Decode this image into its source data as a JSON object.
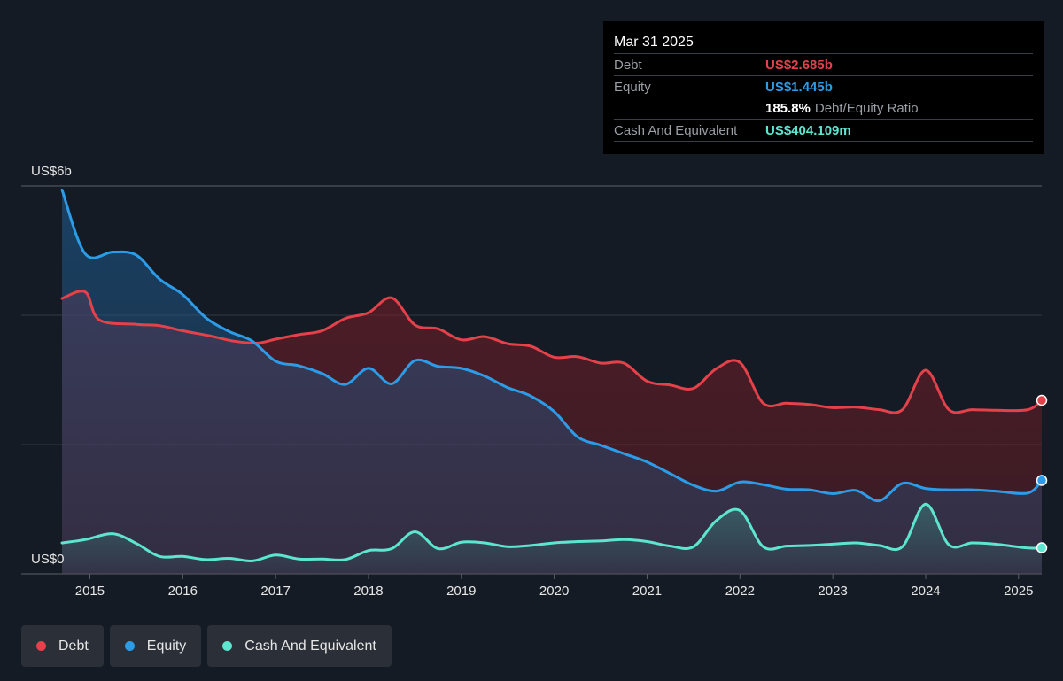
{
  "tooltip": {
    "date": "Mar 31 2025",
    "rows": [
      {
        "label": "Debt",
        "value": "US$2.685b",
        "color": "#e5414a"
      },
      {
        "label": "Equity",
        "value": "US$1.445b",
        "color": "#2d9ce8"
      },
      {
        "ratio_value": "185.8%",
        "ratio_label": "Debt/Equity Ratio"
      },
      {
        "label": "Cash And Equivalent",
        "value": "US$404.109m",
        "color": "#5de6cf"
      }
    ]
  },
  "legend": [
    {
      "label": "Debt",
      "color": "#e5414a"
    },
    {
      "label": "Equity",
      "color": "#2d9ce8"
    },
    {
      "label": "Cash And Equivalent",
      "color": "#5de6cf"
    }
  ],
  "chart_data": {
    "type": "area",
    "y_top_label": "US$6b",
    "y_bottom_label": "US$0",
    "ylim": [
      0,
      6
    ],
    "xlim": [
      2014.7,
      2025.25
    ],
    "x_ticks": [
      "2015",
      "2016",
      "2017",
      "2018",
      "2019",
      "2020",
      "2021",
      "2022",
      "2023",
      "2024",
      "2025"
    ],
    "grid": true,
    "legend_position": "bottom-left",
    "series": [
      {
        "name": "Debt",
        "color": "#e5414a",
        "points": [
          [
            2014.7,
            4.26
          ],
          [
            2014.95,
            4.36
          ],
          [
            2015.1,
            3.93
          ],
          [
            2015.5,
            3.86
          ],
          [
            2015.75,
            3.84
          ],
          [
            2016.0,
            3.76
          ],
          [
            2016.3,
            3.68
          ],
          [
            2016.55,
            3.6
          ],
          [
            2016.8,
            3.57
          ],
          [
            2017.0,
            3.63
          ],
          [
            2017.25,
            3.7
          ],
          [
            2017.5,
            3.76
          ],
          [
            2017.75,
            3.95
          ],
          [
            2018.0,
            4.04
          ],
          [
            2018.25,
            4.27
          ],
          [
            2018.5,
            3.85
          ],
          [
            2018.75,
            3.79
          ],
          [
            2019.0,
            3.62
          ],
          [
            2019.25,
            3.67
          ],
          [
            2019.5,
            3.56
          ],
          [
            2019.75,
            3.52
          ],
          [
            2020.0,
            3.35
          ],
          [
            2020.25,
            3.36
          ],
          [
            2020.5,
            3.26
          ],
          [
            2020.75,
            3.26
          ],
          [
            2021.0,
            2.98
          ],
          [
            2021.25,
            2.92
          ],
          [
            2021.5,
            2.87
          ],
          [
            2021.75,
            3.18
          ],
          [
            2022.0,
            3.27
          ],
          [
            2022.25,
            2.64
          ],
          [
            2022.5,
            2.64
          ],
          [
            2022.75,
            2.62
          ],
          [
            2023.0,
            2.57
          ],
          [
            2023.25,
            2.58
          ],
          [
            2023.5,
            2.54
          ],
          [
            2023.75,
            2.54
          ],
          [
            2024.0,
            3.15
          ],
          [
            2024.25,
            2.54
          ],
          [
            2024.5,
            2.54
          ],
          [
            2024.75,
            2.53
          ],
          [
            2025.1,
            2.54
          ],
          [
            2025.25,
            2.685
          ]
        ]
      },
      {
        "name": "Equity",
        "color": "#2d9ce8",
        "points": [
          [
            2014.7,
            5.94
          ],
          [
            2014.95,
            4.95
          ],
          [
            2015.25,
            4.98
          ],
          [
            2015.5,
            4.93
          ],
          [
            2015.75,
            4.56
          ],
          [
            2016.0,
            4.32
          ],
          [
            2016.25,
            3.96
          ],
          [
            2016.5,
            3.75
          ],
          [
            2016.75,
            3.6
          ],
          [
            2017.0,
            3.29
          ],
          [
            2017.25,
            3.22
          ],
          [
            2017.5,
            3.1
          ],
          [
            2017.75,
            2.93
          ],
          [
            2018.0,
            3.18
          ],
          [
            2018.25,
            2.94
          ],
          [
            2018.5,
            3.3
          ],
          [
            2018.75,
            3.21
          ],
          [
            2019.0,
            3.18
          ],
          [
            2019.25,
            3.06
          ],
          [
            2019.5,
            2.88
          ],
          [
            2019.75,
            2.75
          ],
          [
            2020.0,
            2.51
          ],
          [
            2020.25,
            2.12
          ],
          [
            2020.5,
            1.99
          ],
          [
            2020.75,
            1.86
          ],
          [
            2021.0,
            1.73
          ],
          [
            2021.25,
            1.55
          ],
          [
            2021.5,
            1.37
          ],
          [
            2021.75,
            1.28
          ],
          [
            2022.0,
            1.42
          ],
          [
            2022.25,
            1.38
          ],
          [
            2022.5,
            1.31
          ],
          [
            2022.75,
            1.3
          ],
          [
            2023.0,
            1.24
          ],
          [
            2023.25,
            1.29
          ],
          [
            2023.5,
            1.13
          ],
          [
            2023.75,
            1.4
          ],
          [
            2024.0,
            1.32
          ],
          [
            2024.25,
            1.3
          ],
          [
            2024.5,
            1.3
          ],
          [
            2024.75,
            1.28
          ],
          [
            2025.1,
            1.25
          ],
          [
            2025.25,
            1.445
          ]
        ]
      },
      {
        "name": "Cash And Equivalent",
        "color": "#5de6cf",
        "points": [
          [
            2014.7,
            0.48
          ],
          [
            2014.95,
            0.53
          ],
          [
            2015.25,
            0.62
          ],
          [
            2015.5,
            0.47
          ],
          [
            2015.75,
            0.27
          ],
          [
            2016.0,
            0.27
          ],
          [
            2016.25,
            0.22
          ],
          [
            2016.5,
            0.24
          ],
          [
            2016.75,
            0.2
          ],
          [
            2017.0,
            0.29
          ],
          [
            2017.25,
            0.23
          ],
          [
            2017.5,
            0.23
          ],
          [
            2017.75,
            0.22
          ],
          [
            2018.0,
            0.36
          ],
          [
            2018.25,
            0.39
          ],
          [
            2018.5,
            0.65
          ],
          [
            2018.75,
            0.39
          ],
          [
            2019.0,
            0.49
          ],
          [
            2019.25,
            0.48
          ],
          [
            2019.5,
            0.42
          ],
          [
            2019.75,
            0.44
          ],
          [
            2020.0,
            0.48
          ],
          [
            2020.25,
            0.5
          ],
          [
            2020.5,
            0.51
          ],
          [
            2020.75,
            0.53
          ],
          [
            2021.0,
            0.5
          ],
          [
            2021.25,
            0.43
          ],
          [
            2021.5,
            0.42
          ],
          [
            2021.75,
            0.83
          ],
          [
            2022.0,
            0.98
          ],
          [
            2022.25,
            0.42
          ],
          [
            2022.5,
            0.43
          ],
          [
            2022.75,
            0.44
          ],
          [
            2023.0,
            0.46
          ],
          [
            2023.25,
            0.48
          ],
          [
            2023.5,
            0.44
          ],
          [
            2023.75,
            0.42
          ],
          [
            2024.0,
            1.08
          ],
          [
            2024.25,
            0.45
          ],
          [
            2024.5,
            0.48
          ],
          [
            2024.75,
            0.46
          ],
          [
            2025.1,
            0.4
          ],
          [
            2025.25,
            0.404
          ]
        ]
      }
    ]
  }
}
